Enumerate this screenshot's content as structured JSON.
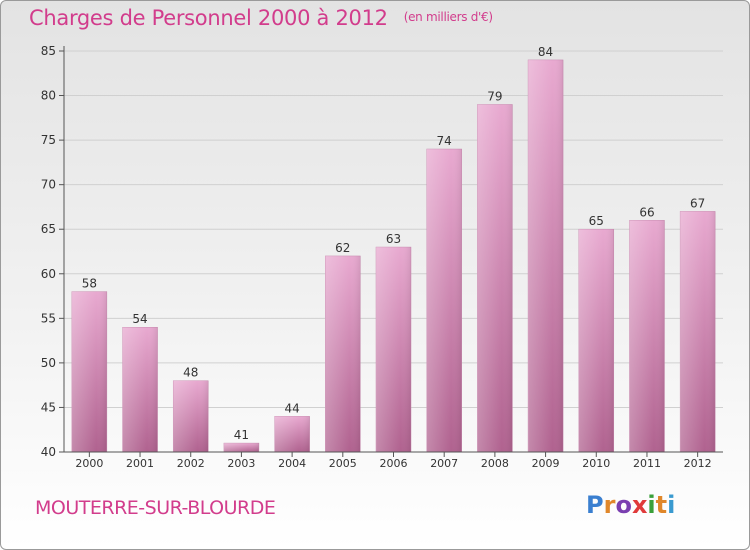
{
  "title": "Charges de Personnel 2000 à 2012",
  "subtitle": "(en milliers d'€)",
  "city": "MOUTERRE-SUR-BLOURDE",
  "logo": {
    "text": "Proxiti",
    "letter_colors": [
      "#3a7fd0",
      "#e0872a",
      "#7a3fb0",
      "#e03a3a",
      "#3aa03a",
      "#e0872a",
      "#3a9ad0"
    ]
  },
  "colors": {
    "title": "#d23c8c",
    "bar_top": "#e8a9d0",
    "bar_bottom": "#b0628f",
    "grid": "#d0d0d0",
    "axis": "#555555",
    "text": "#333333"
  },
  "chart_data": {
    "type": "bar",
    "categories": [
      "2000",
      "2001",
      "2002",
      "2003",
      "2004",
      "2005",
      "2006",
      "2007",
      "2008",
      "2009",
      "2010",
      "2011",
      "2012"
    ],
    "values": [
      58,
      54,
      48,
      41,
      44,
      62,
      63,
      74,
      79,
      84,
      65,
      66,
      67
    ],
    "data_labels": [
      "58",
      "54",
      "48",
      "41",
      "44",
      "62",
      "63",
      "74",
      "79",
      "84",
      "65",
      "66",
      "67"
    ],
    "title": "Charges de Personnel 2000 à 2012",
    "xlabel": "",
    "ylabel": "",
    "ylim": [
      40,
      85
    ],
    "yticks": [
      40,
      45,
      50,
      55,
      60,
      65,
      70,
      75,
      80,
      85
    ],
    "grid": true
  }
}
